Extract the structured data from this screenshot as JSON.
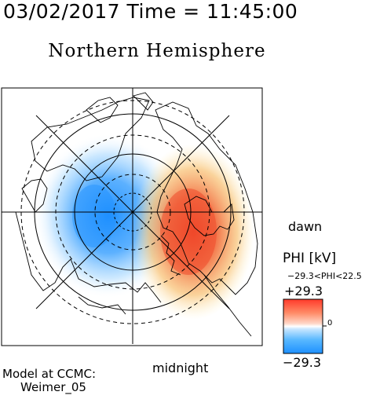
{
  "header": {
    "title": "03/02/2017 Time = 11:45:00"
  },
  "map": {
    "subtitle": "Northern Hemisphere",
    "labels": {
      "dawn": "dawn",
      "midnight": "midnight"
    },
    "colors": {
      "negative": "#2196f3",
      "positive": "#f0502a",
      "frame": "#000000"
    }
  },
  "model": {
    "line1": "Model at CCMC:",
    "line2": "Weimer_05"
  },
  "colorbar": {
    "title": "PHI [kV]",
    "range_text": "−29.3<PHI<22.5",
    "max_label": "+29.3",
    "min_label": "−29.3",
    "zero_label": "0",
    "stops": [
      "#ff3a2a",
      "#ff8a66",
      "#ffd7c8",
      "#ffffff",
      "#c8e6ff",
      "#58b8ff",
      "#1e90ff"
    ]
  }
}
